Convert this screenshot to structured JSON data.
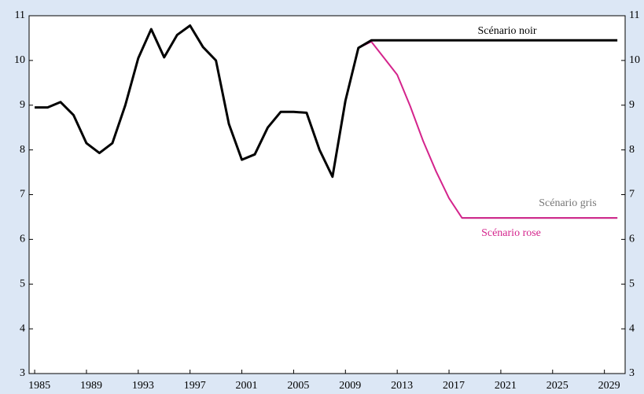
{
  "chart_data": {
    "type": "line",
    "x": [
      1985,
      1986,
      1987,
      1988,
      1989,
      1990,
      1991,
      1992,
      1993,
      1994,
      1995,
      1996,
      1997,
      1998,
      1999,
      2000,
      2001,
      2002,
      2003,
      2004,
      2005,
      2006,
      2007,
      2008,
      2009,
      2010,
      2011,
      2012,
      2013,
      2014,
      2015,
      2016,
      2017,
      2018,
      2019,
      2020,
      2021,
      2022,
      2023,
      2024,
      2025,
      2026,
      2027,
      2028,
      2029,
      2030
    ],
    "series": [
      {
        "name": "Scénario noir",
        "color": "#000000",
        "values": [
          8.95,
          8.95,
          9.07,
          8.78,
          8.15,
          7.93,
          8.15,
          9.0,
          10.05,
          10.7,
          10.07,
          10.57,
          10.78,
          10.3,
          10.0,
          8.58,
          7.78,
          7.9,
          8.5,
          8.85,
          8.85,
          8.83,
          8.0,
          7.4,
          9.1,
          10.28,
          10.45,
          10.45,
          10.45,
          10.45,
          10.45,
          10.45,
          10.45,
          10.45,
          10.45,
          10.45,
          10.45,
          10.45,
          10.45,
          10.45,
          10.45,
          10.45,
          10.45,
          10.45,
          10.45,
          10.45
        ]
      },
      {
        "name": "Scénario gris",
        "color": "#777777",
        "values": [
          null,
          null,
          null,
          null,
          null,
          null,
          null,
          null,
          null,
          null,
          null,
          null,
          null,
          null,
          null,
          null,
          null,
          null,
          null,
          null,
          null,
          null,
          null,
          null,
          null,
          null,
          null,
          null,
          null,
          null,
          null,
          null,
          null,
          6.48,
          6.48,
          6.48,
          6.48,
          6.48,
          6.48,
          6.48,
          6.48,
          6.48,
          6.48,
          6.48,
          6.48,
          6.48
        ]
      },
      {
        "name": "Scénario rose",
        "color": "#d4248c",
        "values": [
          null,
          null,
          null,
          null,
          null,
          null,
          null,
          null,
          null,
          null,
          null,
          null,
          null,
          null,
          null,
          null,
          null,
          null,
          null,
          null,
          null,
          null,
          null,
          null,
          null,
          10.28,
          10.42,
          10.05,
          9.68,
          8.98,
          8.2,
          7.52,
          6.92,
          6.48,
          6.48,
          6.48,
          6.48,
          6.48,
          6.48,
          6.48,
          6.48,
          6.48,
          6.48,
          6.48,
          6.48,
          6.48
        ]
      }
    ],
    "xlim": [
      1984.57,
      2030.6
    ],
    "xticks": [
      1985,
      1989,
      1993,
      1997,
      2001,
      2005,
      2009,
      2013,
      2017,
      2021,
      2025,
      2029
    ],
    "ylim": [
      3,
      11
    ],
    "yticks": [
      3,
      4,
      5,
      6,
      7,
      8,
      9,
      10,
      11
    ],
    "y2lim": [
      3,
      11
    ],
    "y2ticks": [
      3,
      4,
      5,
      6,
      7,
      8,
      9,
      10,
      11
    ]
  }
}
